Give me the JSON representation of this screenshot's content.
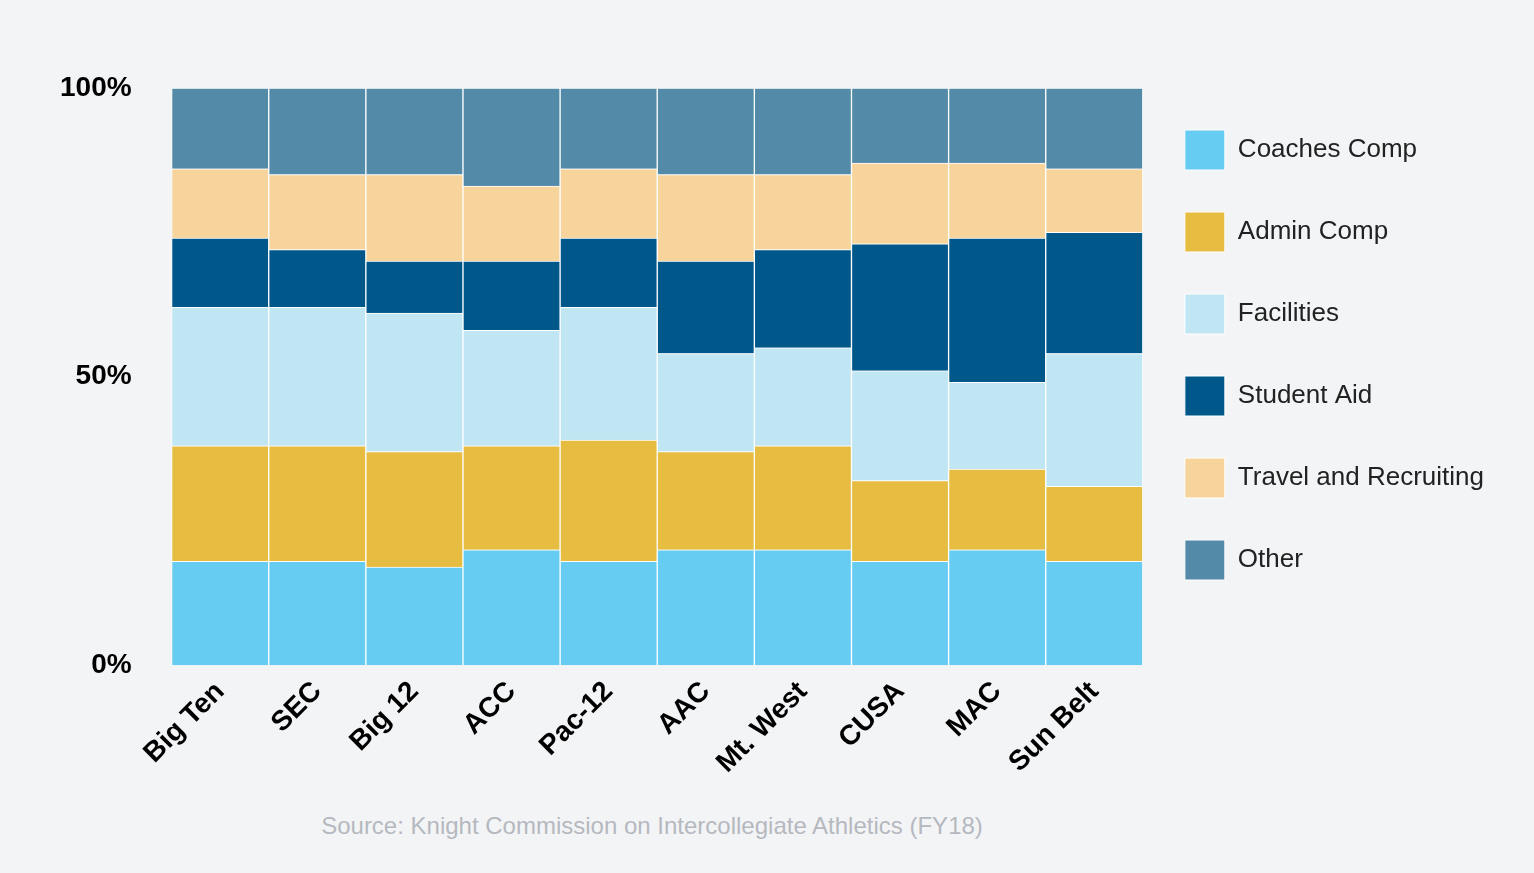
{
  "chart_data": {
    "type": "bar",
    "stacked": true,
    "grid": false,
    "legend": "right",
    "source": "Source: Knight Commission on Intercollegiate Athletics (FY18)",
    "categories": [
      "Big Ten",
      "SEC",
      "Big 12",
      "ACC",
      "Pac-12",
      "AAC",
      "Mt. West",
      "CUSA",
      "MAC",
      "Sun Belt"
    ],
    "ylim": [
      0,
      100
    ],
    "yticks": [
      {
        "value": 0,
        "label": "0%"
      },
      {
        "value": 50,
        "label": "50%"
      },
      {
        "value": 100,
        "label": "100%"
      }
    ],
    "series": [
      {
        "name": "Coaches Comp",
        "color": "#66ccf2",
        "values": [
          18,
          18,
          17,
          20,
          18,
          20,
          20,
          18,
          20,
          18
        ]
      },
      {
        "name": "Admin Comp",
        "color": "#e6bd40",
        "values": [
          20,
          20,
          20,
          18,
          21,
          17,
          18,
          14,
          14,
          13
        ]
      },
      {
        "name": "Facilities",
        "color": "#c1e6f3",
        "values": [
          24,
          24,
          24,
          20,
          23,
          17,
          17,
          19,
          15,
          23
        ]
      },
      {
        "name": "Student Aid",
        "color": "#00578a",
        "values": [
          12,
          10,
          9,
          12,
          12,
          16,
          17,
          22,
          25,
          21
        ]
      },
      {
        "name": "Travel and Recruiting",
        "color": "#f6d49c",
        "values": [
          12,
          13,
          15,
          13,
          12,
          15,
          13,
          14,
          13,
          11
        ]
      },
      {
        "name": "Other",
        "color": "#538aa8",
        "values": [
          14,
          15,
          15,
          17,
          14,
          15,
          15,
          13,
          13,
          14
        ]
      }
    ]
  }
}
